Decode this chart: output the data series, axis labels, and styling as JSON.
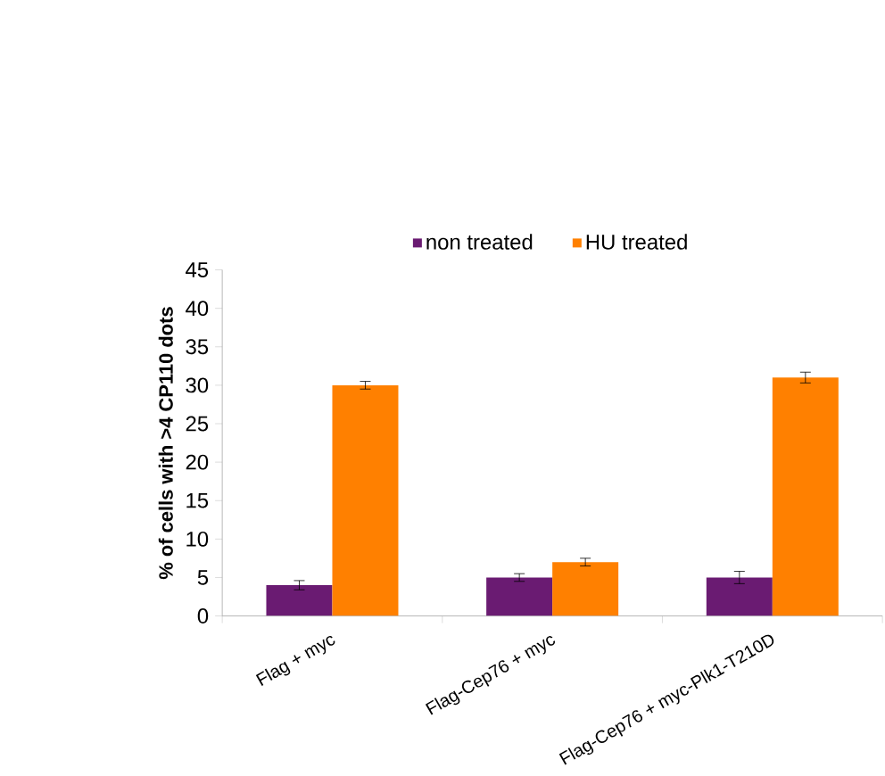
{
  "chart_data": {
    "type": "bar",
    "ylabel": "% of cells with >4 CP110 dots",
    "categories": [
      "Flag + myc",
      "Flag-Cep76 + myc",
      "Flag-Cep76 + myc-Plk1-T210D"
    ],
    "series": [
      {
        "name": "non treated",
        "color": "#6a1b72",
        "values": [
          4,
          5,
          5
        ],
        "errors": [
          0.6,
          0.5,
          0.8
        ]
      },
      {
        "name": "HU treated",
        "color": "#ff8000",
        "values": [
          30,
          7,
          31
        ],
        "errors": [
          0.5,
          0.5,
          0.7
        ]
      }
    ],
    "ylim": [
      0,
      45
    ],
    "yticks": [
      0,
      5,
      10,
      15,
      20,
      25,
      30,
      35,
      40,
      45
    ],
    "grid": false,
    "legend": "top"
  }
}
